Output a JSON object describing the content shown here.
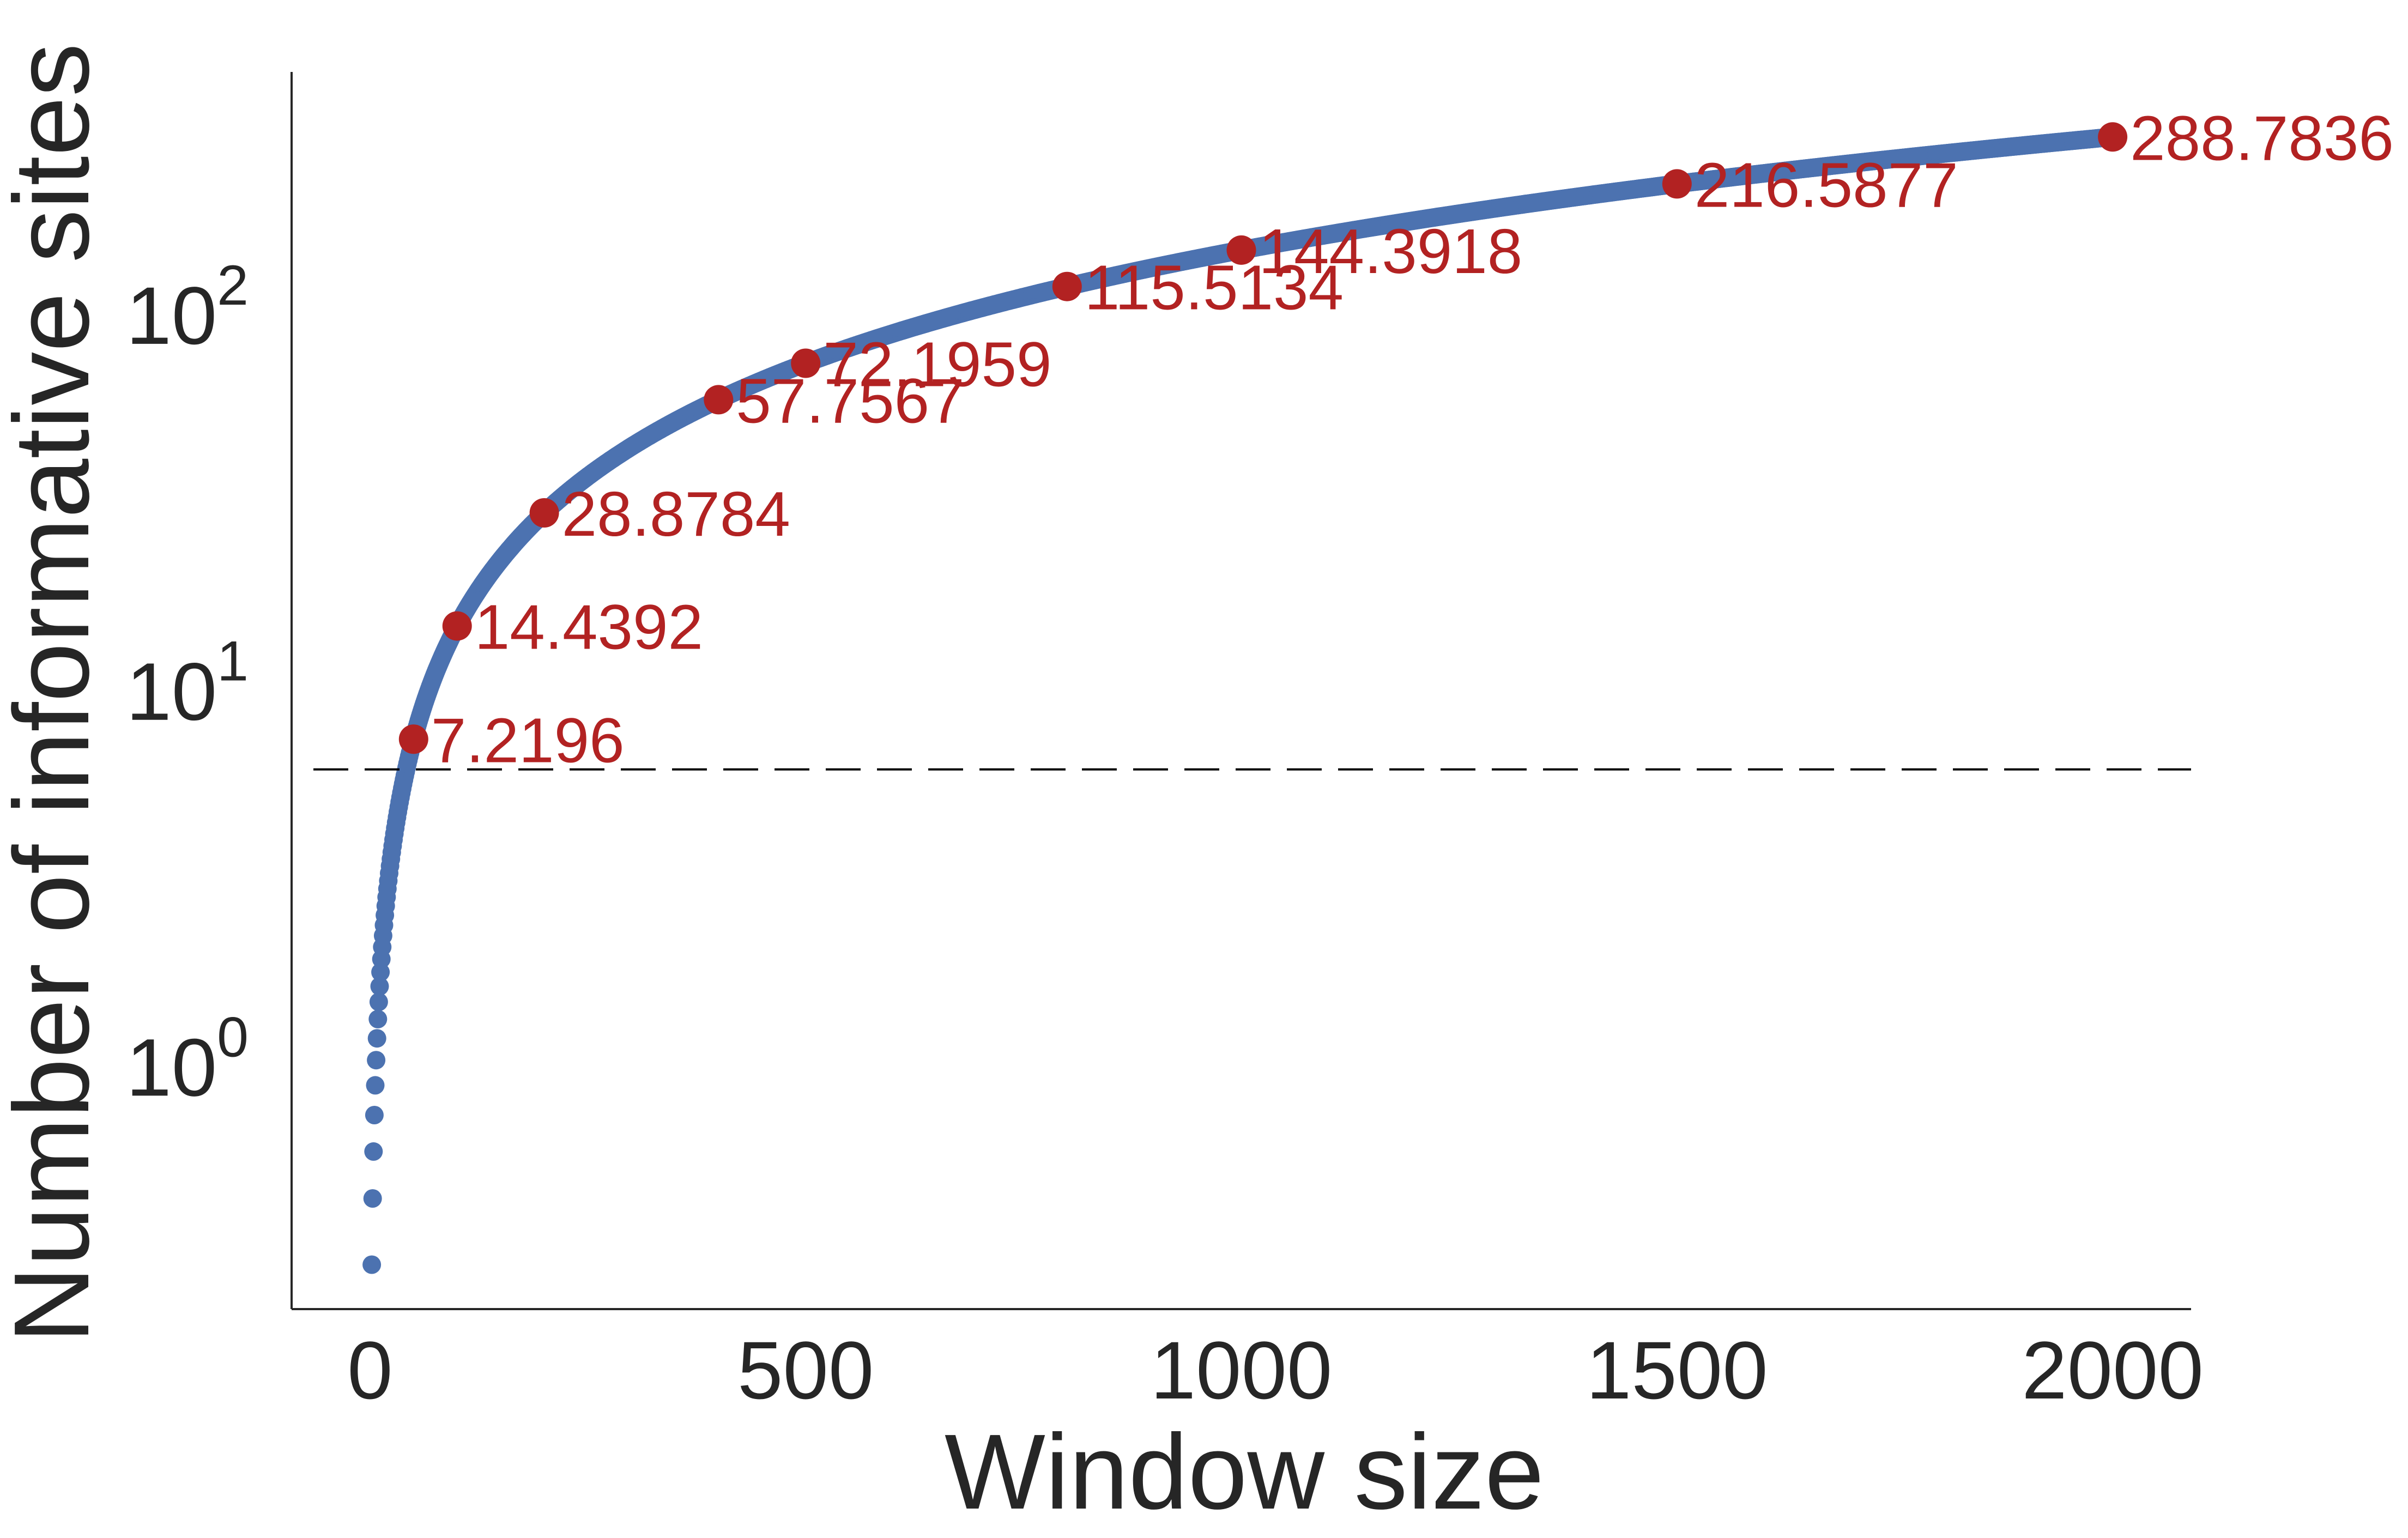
{
  "chart_data": {
    "type": "scatter",
    "title": "",
    "xlabel": "Window size",
    "ylabel": "Number of informative sites",
    "xlim": [
      -90,
      2090
    ],
    "ylim": [
      0.22,
      430
    ],
    "yscale": "log",
    "grid": false,
    "legend": "none",
    "x_ticks": [
      0,
      500,
      1000,
      1500,
      2000
    ],
    "x_tick_labels": [
      "0",
      "500",
      "1000",
      "1500",
      "2000"
    ],
    "y_ticks": [
      1,
      10,
      100
    ],
    "y_tick_labels": [
      {
        "base": "10",
        "exp": "0"
      },
      {
        "base": "10",
        "exp": "1"
      },
      {
        "base": "10",
        "exp": "2"
      }
    ],
    "series": [
      {
        "marker_color": "#4c72b0",
        "relation": "y = 0.144392 * x",
        "x_start": 1,
        "x_end": 2000,
        "x_step": 1,
        "sample_points": [
          [
            1,
            0.1444
          ],
          [
            10,
            1.4439
          ],
          [
            50,
            7.2196
          ],
          [
            100,
            14.4392
          ],
          [
            500,
            72.1959
          ],
          [
            2000,
            288.7836
          ]
        ]
      },
      {
        "marker_color": "#b22222",
        "points": [
          {
            "x": 50,
            "y": 7.2196,
            "label": "7.2196"
          },
          {
            "x": 100,
            "y": 14.4392,
            "label": "14.4392"
          },
          {
            "x": 200,
            "y": 28.8784,
            "label": "28.8784"
          },
          {
            "x": 400,
            "y": 57.7567,
            "label": "57.7567"
          },
          {
            "x": 500,
            "y": 72.1959,
            "label": "72.1959"
          },
          {
            "x": 800,
            "y": 115.5134,
            "label": "115.5134"
          },
          {
            "x": 1000,
            "y": 144.3918,
            "label": "144.3918"
          },
          {
            "x": 1500,
            "y": 216.5877,
            "label": "216.5877"
          },
          {
            "x": 2000,
            "y": 288.7836,
            "label": "288.7836"
          }
        ]
      }
    ],
    "reference_line": {
      "y": 6,
      "style": "dashed",
      "color": "#000000"
    }
  }
}
